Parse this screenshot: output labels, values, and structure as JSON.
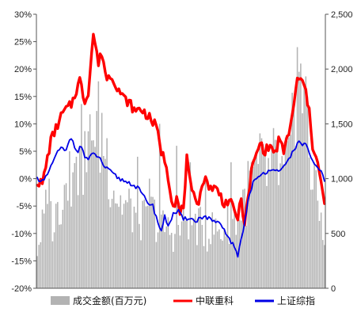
{
  "chart_data": {
    "type": "bar+line",
    "title": "",
    "xlabel": "",
    "ylabel_left": "",
    "ylabel_right": "",
    "y_left": {
      "min": -0.2,
      "max": 0.3,
      "step": 0.05,
      "tick_labels": [
        "-20%",
        "-15%",
        "-10%",
        "-5%",
        "0%",
        "5%",
        "10%",
        "15%",
        "20%",
        "25%",
        "30%"
      ]
    },
    "y_right": {
      "min": 0,
      "max": 2500,
      "step": 500,
      "tick_labels": [
        "0",
        "500",
        "1,000",
        "1,500",
        "2,000",
        "2,500"
      ]
    },
    "grid": false,
    "legend_position": "bottom",
    "colors": {
      "bars": "#b3b3b3",
      "zhonglian": "#ff0000",
      "index": "#0000e6",
      "axis": "#555555"
    },
    "legend": [
      {
        "label": "成交金额(百万元)",
        "color": "#b3b3b3",
        "kind": "bar"
      },
      {
        "label": "中联重科",
        "color": "#ff0000",
        "kind": "line"
      },
      {
        "label": "上证综指",
        "color": "#0000e6",
        "kind": "line"
      }
    ],
    "n_points": 170,
    "series": [
      {
        "name": "中联重科",
        "axis": "left",
        "anchors": [
          [
            0,
            -0.005
          ],
          [
            3,
            -0.01
          ],
          [
            8,
            0.07
          ],
          [
            15,
            0.12
          ],
          [
            20,
            0.135
          ],
          [
            25,
            0.18
          ],
          [
            28,
            0.14
          ],
          [
            30,
            0.16
          ],
          [
            32,
            0.23
          ],
          [
            33,
            0.265
          ],
          [
            36,
            0.21
          ],
          [
            38,
            0.23
          ],
          [
            41,
            0.18
          ],
          [
            43,
            0.19
          ],
          [
            46,
            0.175
          ],
          [
            50,
            0.15
          ],
          [
            55,
            0.135
          ],
          [
            58,
            0.12
          ],
          [
            60,
            0.13
          ],
          [
            65,
            0.115
          ],
          [
            70,
            0.095
          ],
          [
            73,
            0.05
          ],
          [
            76,
            0.025
          ],
          [
            78,
            -0.015
          ],
          [
            80,
            -0.05
          ],
          [
            82,
            -0.035
          ],
          [
            84,
            -0.065
          ],
          [
            86,
            -0.05
          ],
          [
            88,
            0.035
          ],
          [
            89,
            0.01
          ],
          [
            91,
            -0.03
          ],
          [
            95,
            -0.04
          ],
          [
            98,
            0.0
          ],
          [
            102,
            -0.015
          ],
          [
            106,
            -0.02
          ],
          [
            110,
            -0.045
          ],
          [
            113,
            -0.04
          ],
          [
            116,
            -0.06
          ],
          [
            118,
            -0.07
          ],
          [
            120,
            -0.04
          ],
          [
            122,
            -0.08
          ],
          [
            124,
            -0.04
          ],
          [
            126,
            0.015
          ],
          [
            128,
            0.035
          ],
          [
            131,
            0.065
          ],
          [
            134,
            0.05
          ],
          [
            137,
            0.06
          ],
          [
            140,
            0.045
          ],
          [
            142,
            0.07
          ],
          [
            145,
            0.05
          ],
          [
            148,
            0.085
          ],
          [
            151,
            0.13
          ],
          [
            153,
            0.185
          ],
          [
            156,
            0.175
          ],
          [
            158,
            0.16
          ],
          [
            160,
            0.12
          ],
          [
            162,
            0.06
          ],
          [
            164,
            0.045
          ],
          [
            166,
            0.01
          ],
          [
            168,
            -0.03
          ],
          [
            169,
            -0.05
          ]
        ]
      },
      {
        "name": "上证综指",
        "axis": "left",
        "anchors": [
          [
            0,
            0.0
          ],
          [
            4,
            -0.005
          ],
          [
            8,
            0.02
          ],
          [
            11,
            0.045
          ],
          [
            14,
            0.055
          ],
          [
            17,
            0.05
          ],
          [
            19,
            0.07
          ],
          [
            20,
            0.075
          ],
          [
            22,
            0.06
          ],
          [
            24,
            0.05
          ],
          [
            26,
            0.06
          ],
          [
            28,
            0.04
          ],
          [
            30,
            0.035
          ],
          [
            33,
            0.045
          ],
          [
            36,
            0.04
          ],
          [
            40,
            0.02
          ],
          [
            44,
            0.01
          ],
          [
            48,
            0.0
          ],
          [
            52,
            -0.005
          ],
          [
            56,
            -0.01
          ],
          [
            60,
            -0.02
          ],
          [
            64,
            -0.04
          ],
          [
            68,
            -0.05
          ],
          [
            71,
            -0.08
          ],
          [
            73,
            -0.095
          ],
          [
            75,
            -0.07
          ],
          [
            77,
            -0.085
          ],
          [
            80,
            -0.065
          ],
          [
            83,
            -0.06
          ],
          [
            86,
            -0.075
          ],
          [
            90,
            -0.07
          ],
          [
            93,
            -0.08
          ],
          [
            96,
            -0.07
          ],
          [
            99,
            -0.07
          ],
          [
            102,
            -0.075
          ],
          [
            105,
            -0.08
          ],
          [
            108,
            -0.085
          ],
          [
            111,
            -0.1
          ],
          [
            113,
            -0.11
          ],
          [
            115,
            -0.12
          ],
          [
            117,
            -0.135
          ],
          [
            118,
            -0.14
          ],
          [
            120,
            -0.11
          ],
          [
            122,
            -0.08
          ],
          [
            124,
            -0.04
          ],
          [
            127,
            -0.005
          ],
          [
            130,
            0.0
          ],
          [
            133,
            0.01
          ],
          [
            136,
            0.015
          ],
          [
            139,
            0.02
          ],
          [
            142,
            0.01
          ],
          [
            145,
            0.02
          ],
          [
            148,
            0.035
          ],
          [
            151,
            0.055
          ],
          [
            154,
            0.065
          ],
          [
            156,
            0.063
          ],
          [
            158,
            0.065
          ],
          [
            160,
            0.045
          ],
          [
            162,
            0.03
          ],
          [
            164,
            0.02
          ],
          [
            166,
            0.015
          ],
          [
            168,
            0.01
          ],
          [
            169,
            -0.005
          ]
        ]
      },
      {
        "name": "成交金额(百万元)",
        "axis": "right",
        "type": "bar",
        "anchors": [
          [
            0,
            350
          ],
          [
            5,
            700
          ],
          [
            10,
            600
          ],
          [
            15,
            900
          ],
          [
            18,
            1050
          ],
          [
            22,
            950
          ],
          [
            26,
            1250
          ],
          [
            29,
            1150
          ],
          [
            32,
            1350
          ],
          [
            36,
            1450
          ],
          [
            40,
            1300
          ],
          [
            44,
            1000
          ],
          [
            48,
            800
          ],
          [
            52,
            750
          ],
          [
            56,
            700
          ],
          [
            60,
            650
          ],
          [
            64,
            600
          ],
          [
            68,
            700
          ],
          [
            72,
            550
          ],
          [
            76,
            550
          ],
          [
            80,
            500
          ],
          [
            84,
            550
          ],
          [
            88,
            650
          ],
          [
            92,
            600
          ],
          [
            96,
            550
          ],
          [
            100,
            500
          ],
          [
            104,
            550
          ],
          [
            108,
            500
          ],
          [
            112,
            600
          ],
          [
            116,
            650
          ],
          [
            120,
            700
          ],
          [
            124,
            900
          ],
          [
            128,
            1000
          ],
          [
            132,
            1100
          ],
          [
            136,
            1000
          ],
          [
            140,
            1150
          ],
          [
            144,
            1000
          ],
          [
            148,
            1150
          ],
          [
            152,
            1500
          ],
          [
            154,
            2200
          ],
          [
            156,
            1800
          ],
          [
            158,
            1600
          ],
          [
            160,
            1300
          ],
          [
            162,
            1000
          ],
          [
            164,
            800
          ],
          [
            166,
            700
          ],
          [
            169,
            500
          ]
        ],
        "spikes": [
          [
            7,
            1000
          ],
          [
            19,
            1250
          ],
          [
            23,
            1200
          ],
          [
            25,
            1300
          ],
          [
            33,
            1350
          ],
          [
            38,
            1600
          ],
          [
            59,
            1200
          ],
          [
            66,
            1000
          ],
          [
            72,
            1500
          ],
          [
            82,
            1300
          ],
          [
            90,
            1150
          ],
          [
            99,
            1000
          ],
          [
            114,
            1150
          ],
          [
            121,
            900
          ],
          [
            126,
            1150
          ],
          [
            134,
            1250
          ],
          [
            141,
            1350
          ],
          [
            149,
            1400
          ],
          [
            153,
            2200
          ],
          [
            155,
            2050
          ],
          [
            157,
            1850
          ],
          [
            159,
            1750
          ],
          [
            163,
            1150
          ]
        ]
      }
    ]
  }
}
